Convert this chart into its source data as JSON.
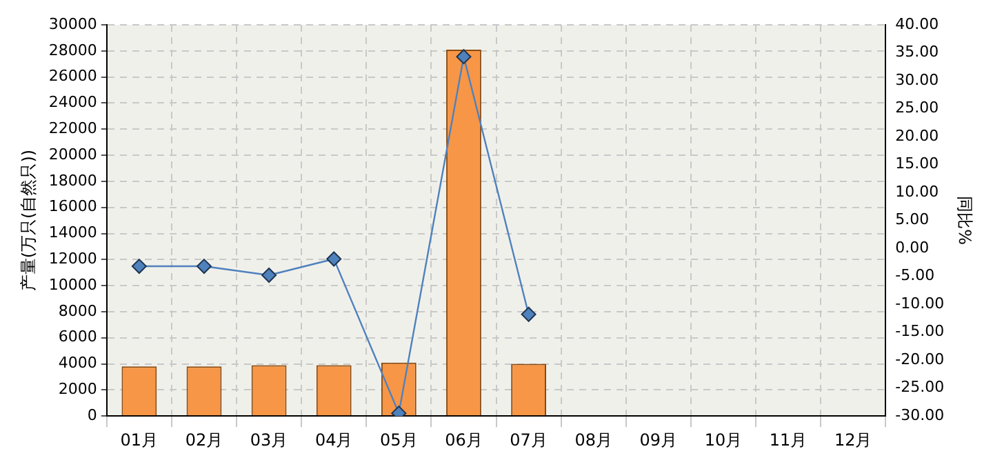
{
  "chart_data": {
    "type": "bar",
    "ylabel": "产量(万只(自然只))",
    "y2label": "同比%",
    "categories": [
      "01月",
      "02月",
      "03月",
      "04月",
      "05月",
      "06月",
      "07月",
      "08月",
      "09月",
      "10月",
      "11月",
      "12月"
    ],
    "series": [
      {
        "color": "#f79646",
        "values": [
          3800,
          3800,
          3900,
          3900,
          4100,
          28100,
          4000,
          null,
          null,
          null,
          null,
          null
        ]
      },
      {
        "type": "line",
        "axis": "y2",
        "color": "#4f81bd",
        "marker": "diamond",
        "values": [
          -3.2,
          -3.2,
          -4.8,
          -1.9,
          -29.5,
          34.3,
          -11.8,
          null,
          null,
          null,
          null,
          null
        ]
      }
    ],
    "ylim": [
      0,
      30000
    ],
    "yticks": [
      0,
      2000,
      4000,
      6000,
      8000,
      10000,
      12000,
      14000,
      16000,
      18000,
      20000,
      22000,
      24000,
      26000,
      28000,
      30000
    ],
    "y2lim": [
      -30,
      40
    ],
    "y2ticks": [
      {
        "value": -30,
        "label": "-30.00"
      },
      {
        "value": -25,
        "label": "-25.00"
      },
      {
        "value": -20,
        "label": "-20.00"
      },
      {
        "value": -15,
        "label": "-15.00"
      },
      {
        "value": -10,
        "label": "-10.00"
      },
      {
        "value": -5,
        "label": "-5.00"
      },
      {
        "value": 0,
        "label": "0.00"
      },
      {
        "value": 5,
        "label": "5.00"
      },
      {
        "value": 10,
        "label": "10.00"
      },
      {
        "value": 15,
        "label": "15.00"
      },
      {
        "value": 20,
        "label": "20.00"
      },
      {
        "value": 25,
        "label": "25.00"
      },
      {
        "value": 30,
        "label": "30.00"
      },
      {
        "value": 35,
        "label": "35.00"
      },
      {
        "value": 40,
        "label": "40.00"
      }
    ],
    "grid": true,
    "legend": false
  }
}
